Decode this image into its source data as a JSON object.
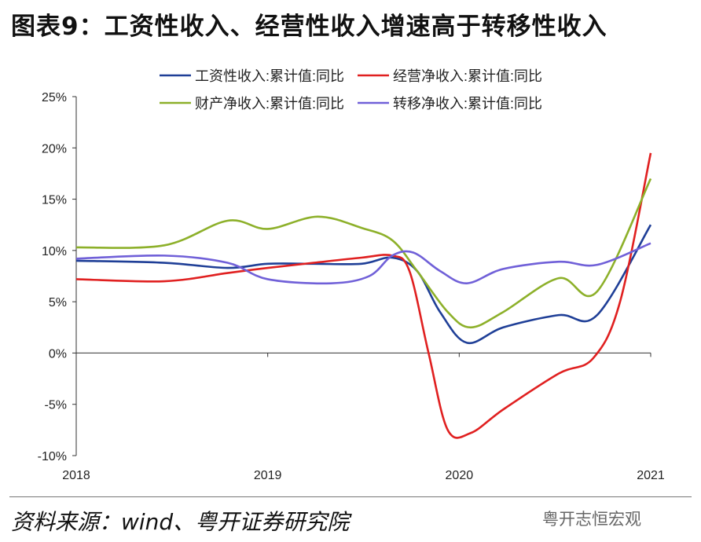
{
  "title": "图表9：工资性收入、经营性收入增速高于转移性收入",
  "source": "资料来源：wind、粤开证券研究院",
  "watermark": "粤开志恒宏观",
  "chart_data": {
    "type": "line",
    "title": "图表9：工资性收入、经营性收入增速高于转移性收入",
    "xlabel": "",
    "ylabel": "",
    "xlim": [
      2018,
      2021
    ],
    "ylim": [
      -10,
      25
    ],
    "x_ticks": [
      "2018",
      "2019",
      "2020",
      "2021"
    ],
    "y_ticks": [
      "25%",
      "20%",
      "15%",
      "10%",
      "5%",
      "0%",
      "-5%",
      "-10%"
    ],
    "y_tick_values": [
      25,
      20,
      15,
      10,
      5,
      0,
      -5,
      -10
    ],
    "legend_position": "top",
    "series": [
      {
        "name": "工资性收入:累计值:同比",
        "color": "#1f3f97",
        "x": [
          2018,
          2018.46,
          2018.79,
          2019.0,
          2019.24,
          2019.49,
          2019.65,
          2019.78,
          2019.9,
          2020.04,
          2020.23,
          2020.52,
          2020.72,
          2021.0
        ],
        "values": [
          9.0,
          8.8,
          8.3,
          8.7,
          8.7,
          8.7,
          9.3,
          8.0,
          4.0,
          1.0,
          2.5,
          3.7,
          3.7,
          12.5
        ]
      },
      {
        "name": "经营净收入:累计值:同比",
        "color": "#e02020",
        "x": [
          2018,
          2018.46,
          2018.79,
          2019.0,
          2019.24,
          2019.49,
          2019.65,
          2019.74,
          2019.84,
          2019.94,
          2020.06,
          2020.23,
          2020.52,
          2020.7,
          2020.84,
          2021.0
        ],
        "values": [
          7.2,
          7.0,
          7.8,
          8.3,
          8.8,
          9.3,
          9.5,
          8.0,
          0,
          -7.5,
          -7.8,
          -5.5,
          -2.0,
          -0.5,
          5.0,
          19.5
        ]
      },
      {
        "name": "财产净收入:累计值:同比",
        "color": "#8db02a",
        "x": [
          2018,
          2018.46,
          2018.79,
          2019.0,
          2019.26,
          2019.49,
          2019.65,
          2019.78,
          2019.94,
          2020.06,
          2020.23,
          2020.52,
          2020.72,
          2021.0
        ],
        "values": [
          10.3,
          10.5,
          12.9,
          12.1,
          13.3,
          12.2,
          11.0,
          8.0,
          4.0,
          2.5,
          4.0,
          7.3,
          6.0,
          17.0
        ]
      },
      {
        "name": "转移净收入:累计值:同比",
        "color": "#7060d8",
        "x": [
          2018,
          2018.46,
          2018.79,
          2019.0,
          2019.33,
          2019.53,
          2019.65,
          2019.76,
          2019.9,
          2020.04,
          2020.23,
          2020.52,
          2020.72,
          2021.0
        ],
        "values": [
          9.2,
          9.5,
          8.8,
          7.2,
          6.8,
          7.5,
          9.5,
          9.8,
          8.0,
          6.8,
          8.2,
          8.9,
          8.6,
          10.7
        ]
      }
    ]
  }
}
